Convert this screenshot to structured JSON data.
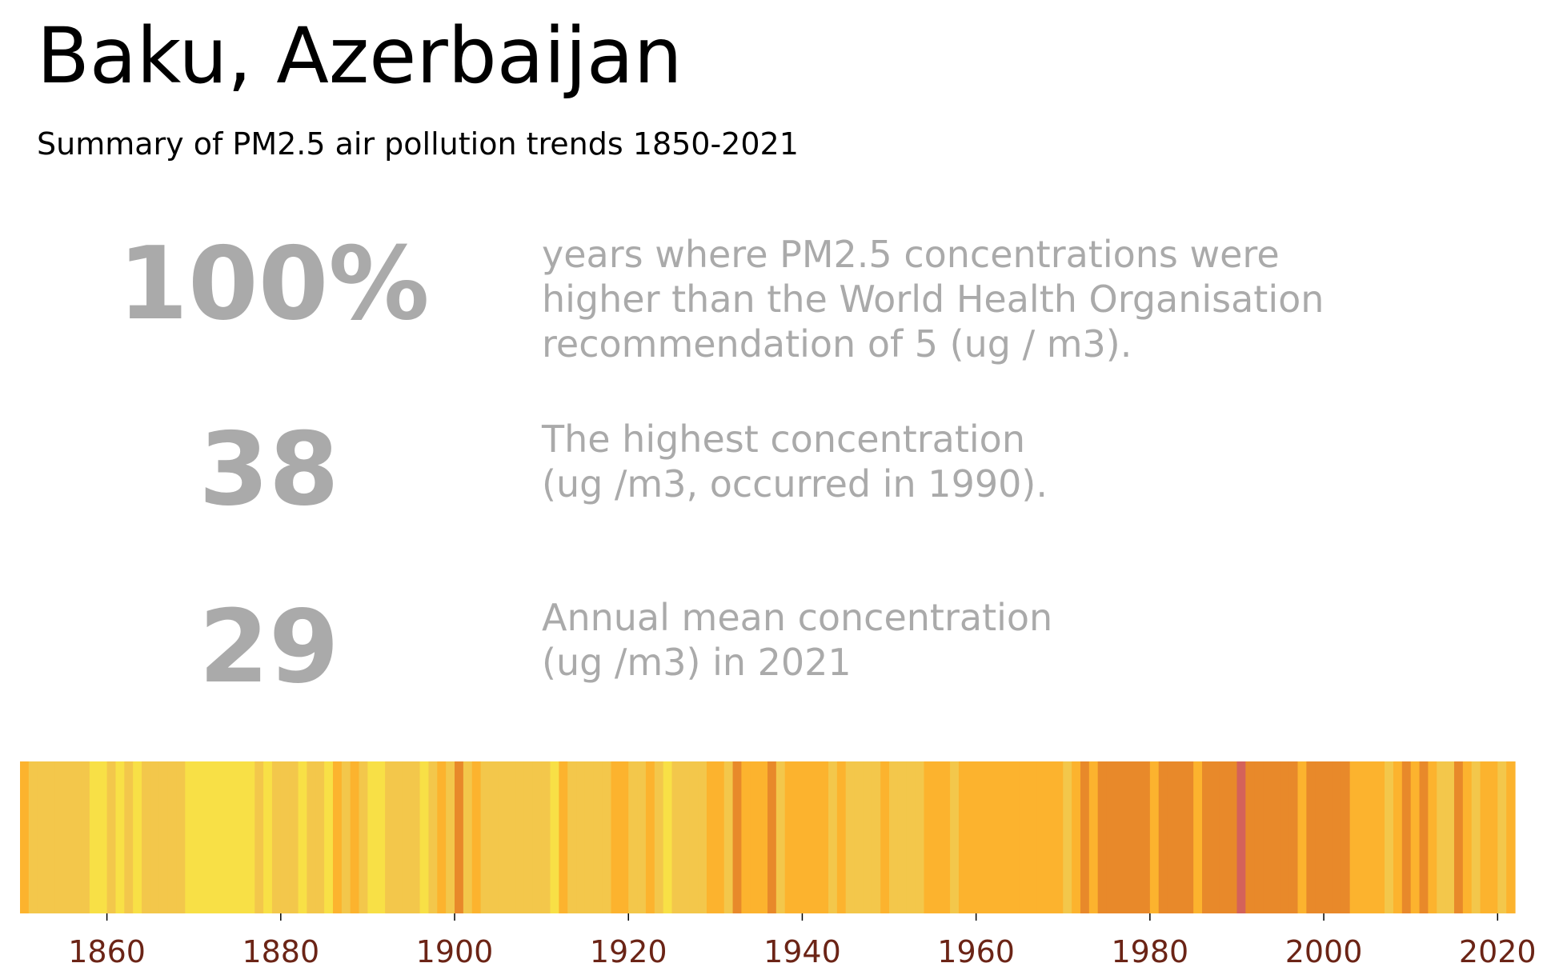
{
  "title": "Baku, Azerbaijan",
  "subtitle": "Summary of PM2.5 air pollution trends 1850-2021",
  "stats": [
    {
      "value": "100%",
      "lines": [
        "years where PM2.5 concentrations were",
        "higher than the World Health Organisation",
        "recommendation of 5 (ug / m3)."
      ]
    },
    {
      "value": "38",
      "lines": [
        "The highest concentration",
        "(ug /m3, occurred in 1990)."
      ]
    },
    {
      "value": "29",
      "lines": [
        "Annual mean concentration",
        "(ug /m3) in 2021"
      ]
    }
  ],
  "colors": {
    "stat_text": "#aaaaaa",
    "tick_label": "#6b2416",
    "level_colors": [
      "#f8e046",
      "#f3c74b",
      "#fcb32e",
      "#e8892a",
      "#d4625a"
    ]
  },
  "chart_data": {
    "type": "heatmap",
    "title": "",
    "xlabel": "",
    "ylabel": "",
    "xlim": [
      1850,
      2022
    ],
    "x_ticks": [
      1860,
      1880,
      1900,
      1920,
      1940,
      1960,
      1980,
      2000,
      2020
    ],
    "x_tick_labels": [
      "1860",
      "1880",
      "1900",
      "1920",
      "1940",
      "1960",
      "1980",
      "2000",
      "2020"
    ],
    "grid": false,
    "years": [
      1850,
      1851,
      1852,
      1853,
      1854,
      1855,
      1856,
      1857,
      1858,
      1859,
      1860,
      1861,
      1862,
      1863,
      1864,
      1865,
      1866,
      1867,
      1868,
      1869,
      1870,
      1871,
      1872,
      1873,
      1874,
      1875,
      1876,
      1877,
      1878,
      1879,
      1880,
      1881,
      1882,
      1883,
      1884,
      1885,
      1886,
      1887,
      1888,
      1889,
      1890,
      1891,
      1892,
      1893,
      1894,
      1895,
      1896,
      1897,
      1898,
      1899,
      1900,
      1901,
      1902,
      1903,
      1904,
      1905,
      1906,
      1907,
      1908,
      1909,
      1910,
      1911,
      1912,
      1913,
      1914,
      1915,
      1916,
      1917,
      1918,
      1919,
      1920,
      1921,
      1922,
      1923,
      1924,
      1925,
      1926,
      1927,
      1928,
      1929,
      1930,
      1931,
      1932,
      1933,
      1934,
      1935,
      1936,
      1937,
      1938,
      1939,
      1940,
      1941,
      1942,
      1943,
      1944,
      1945,
      1946,
      1947,
      1948,
      1949,
      1950,
      1951,
      1952,
      1953,
      1954,
      1955,
      1956,
      1957,
      1958,
      1959,
      1960,
      1961,
      1962,
      1963,
      1964,
      1965,
      1966,
      1967,
      1968,
      1969,
      1970,
      1971,
      1972,
      1973,
      1974,
      1975,
      1976,
      1977,
      1978,
      1979,
      1980,
      1981,
      1982,
      1983,
      1984,
      1985,
      1986,
      1987,
      1988,
      1989,
      1990,
      1991,
      1992,
      1993,
      1994,
      1995,
      1996,
      1997,
      1998,
      1999,
      2000,
      2001,
      2002,
      2003,
      2004,
      2005,
      2006,
      2007,
      2008,
      2009,
      2010,
      2011,
      2012,
      2013,
      2014,
      2015,
      2016,
      2017,
      2018,
      2019,
      2020,
      2021
    ],
    "concentration_level": [
      2,
      1,
      1,
      1,
      1,
      1,
      1,
      1,
      0,
      0,
      1,
      0,
      1,
      0,
      1,
      1,
      1,
      1,
      1,
      0,
      0,
      0,
      0,
      0,
      0,
      0,
      0,
      1,
      0,
      1,
      1,
      1,
      0,
      1,
      1,
      0,
      2,
      1,
      2,
      1,
      0,
      0,
      1,
      1,
      1,
      1,
      0,
      1,
      2,
      1,
      3,
      1,
      2,
      1,
      1,
      1,
      1,
      1,
      1,
      1,
      1,
      0,
      2,
      1,
      1,
      1,
      1,
      1,
      2,
      2,
      1,
      1,
      2,
      1,
      0,
      1,
      1,
      1,
      1,
      2,
      2,
      1,
      3,
      2,
      2,
      2,
      3,
      1,
      2,
      2,
      2,
      2,
      2,
      1,
      2,
      1,
      1,
      1,
      1,
      2,
      1,
      1,
      1,
      1,
      2,
      2,
      2,
      1,
      2,
      2,
      2,
      2,
      2,
      2,
      2,
      2,
      2,
      2,
      2,
      2,
      1,
      2,
      3,
      2,
      3,
      3,
      3,
      3,
      3,
      3,
      2,
      3,
      3,
      3,
      3,
      2,
      3,
      3,
      3,
      3,
      4,
      3,
      3,
      3,
      3,
      3,
      3,
      2,
      3,
      3,
      3,
      3,
      3,
      2,
      2,
      2,
      2,
      1,
      2,
      3,
      2,
      3,
      2,
      1,
      1,
      3,
      2,
      1,
      2,
      2,
      1,
      2
    ],
    "max_value": 38,
    "max_year": 1990,
    "latest_value": 29,
    "latest_year": 2021
  }
}
